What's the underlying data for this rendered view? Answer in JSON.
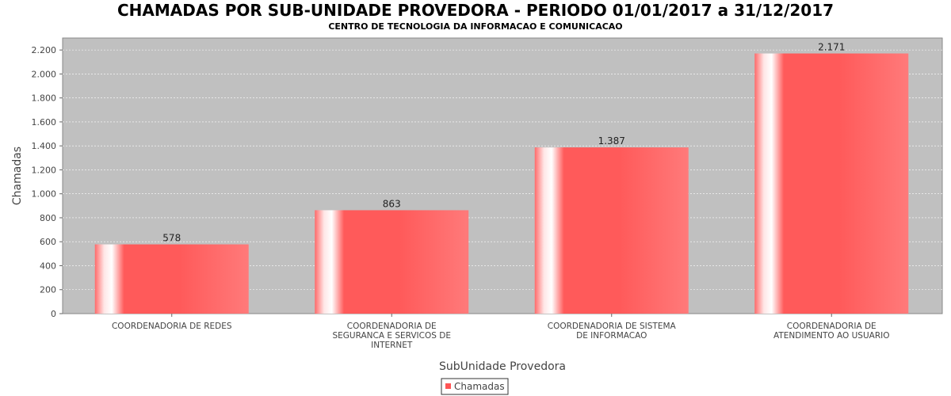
{
  "chart_data": {
    "type": "bar",
    "title": "CHAMADAS POR SUB-UNIDADE PROVEDORA - PERIODO 01/01/2017 a 31/12/2017",
    "subtitle": "CENTRO DE TECNOLOGIA DA INFORMACAO E COMUNICACAO",
    "xlabel": "SubUnidade Provedora",
    "ylabel": "Chamadas",
    "categories": [
      [
        "COORDENADORIA DE REDES"
      ],
      [
        "COORDENADORIA DE",
        "SEGURANCA E SERVICOS DE",
        "INTERNET"
      ],
      [
        "COORDENADORIA DE SISTEMA",
        "DE INFORMACAO"
      ],
      [
        "COORDENADORIA DE",
        "ATENDIMENTO AO USUARIO"
      ]
    ],
    "series": [
      {
        "name": "Chamadas",
        "values": [
          578,
          863,
          1387,
          2171
        ],
        "value_labels": [
          "578",
          "863",
          "1.387",
          "2.171"
        ]
      }
    ],
    "ylim": [
      0,
      2300
    ],
    "yticks": [
      0,
      200,
      400,
      600,
      800,
      1000,
      1200,
      1400,
      1600,
      1800,
      2000,
      2200
    ],
    "ytick_labels": [
      "0",
      "200",
      "400",
      "600",
      "800",
      "1.000",
      "1.200",
      "1.400",
      "1.600",
      "1.800",
      "2.000",
      "2.200"
    ],
    "grid": true,
    "legend_position": "bottom-center",
    "colors": {
      "bar": "#ff5555",
      "plot_bg": "#c0c0c0",
      "grid": "#ffffff"
    }
  }
}
